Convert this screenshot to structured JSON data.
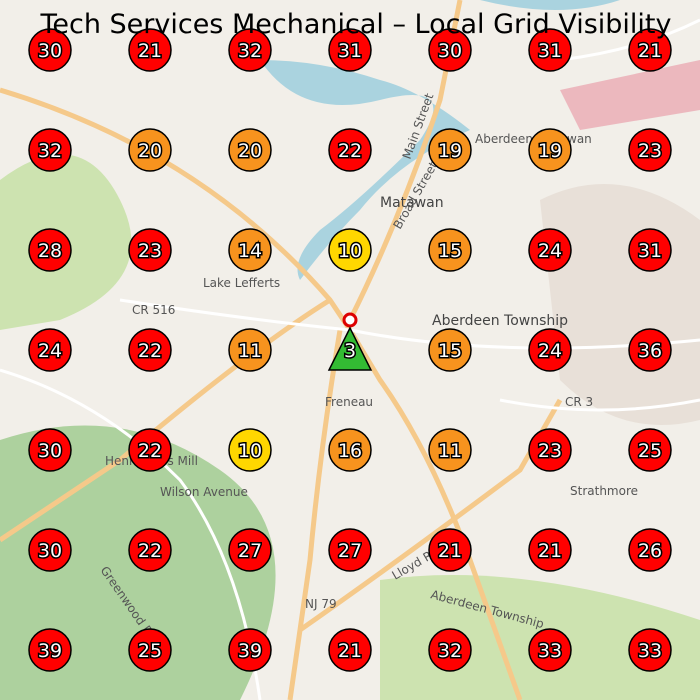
{
  "title": "Tech Services Mechanical – Local Grid Visibility",
  "map": {
    "labels": [
      "Matawan",
      "Aberdeen Township",
      "Aberdeen-Matawan",
      "Freneau",
      "Strathmore",
      "Henningers Mill",
      "Lake Lefferts",
      "CR 516",
      "NJ 79",
      "CR 3",
      "Wilson Avenue",
      "Lloyd Road",
      "Main Street",
      "Broad Street",
      "Greenwood Road",
      "Aberdeen Township"
    ]
  },
  "markers": [
    {
      "value": 30,
      "color": "#ff0000"
    },
    {
      "value": 21,
      "color": "#ff0000"
    },
    {
      "value": 32,
      "color": "#ff0000"
    },
    {
      "value": 31,
      "color": "#ff0000"
    },
    {
      "value": 30,
      "color": "#ff0000"
    },
    {
      "value": 31,
      "color": "#ff0000"
    },
    {
      "value": 21,
      "color": "#ff0000"
    },
    {
      "value": 32,
      "color": "#ff0000"
    },
    {
      "value": 20,
      "color": "#f7931e"
    },
    {
      "value": 20,
      "color": "#f7931e"
    },
    {
      "value": 22,
      "color": "#ff0000"
    },
    {
      "value": 19,
      "color": "#f7931e"
    },
    {
      "value": 19,
      "color": "#f7931e"
    },
    {
      "value": 23,
      "color": "#ff0000"
    },
    {
      "value": 28,
      "color": "#ff0000"
    },
    {
      "value": 23,
      "color": "#ff0000"
    },
    {
      "value": 14,
      "color": "#f7931e"
    },
    {
      "value": 10,
      "color": "#ffd700"
    },
    {
      "value": 15,
      "color": "#f7931e"
    },
    {
      "value": 24,
      "color": "#ff0000"
    },
    {
      "value": 31,
      "color": "#ff0000"
    },
    {
      "value": 24,
      "color": "#ff0000"
    },
    {
      "value": 22,
      "color": "#ff0000"
    },
    {
      "value": 11,
      "color": "#f7931e"
    },
    {
      "value": 3,
      "color": "#33bb33",
      "shape": "triangle"
    },
    {
      "value": 15,
      "color": "#f7931e"
    },
    {
      "value": 24,
      "color": "#ff0000"
    },
    {
      "value": 36,
      "color": "#ff0000"
    },
    {
      "value": 30,
      "color": "#ff0000"
    },
    {
      "value": 22,
      "color": "#ff0000"
    },
    {
      "value": 10,
      "color": "#ffd700"
    },
    {
      "value": 16,
      "color": "#f7931e"
    },
    {
      "value": 11,
      "color": "#f7931e"
    },
    {
      "value": 23,
      "color": "#ff0000"
    },
    {
      "value": 25,
      "color": "#ff0000"
    },
    {
      "value": 30,
      "color": "#ff0000"
    },
    {
      "value": 22,
      "color": "#ff0000"
    },
    {
      "value": 27,
      "color": "#ff0000"
    },
    {
      "value": 27,
      "color": "#ff0000"
    },
    {
      "value": 21,
      "color": "#ff0000"
    },
    {
      "value": 21,
      "color": "#ff0000"
    },
    {
      "value": 26,
      "color": "#ff0000"
    },
    {
      "value": 39,
      "color": "#ff0000"
    },
    {
      "value": 25,
      "color": "#ff0000"
    },
    {
      "value": 39,
      "color": "#ff0000"
    },
    {
      "value": 21,
      "color": "#ff0000"
    },
    {
      "value": 32,
      "color": "#ff0000"
    },
    {
      "value": 33,
      "color": "#ff0000"
    },
    {
      "value": 33,
      "color": "#ff0000"
    }
  ]
}
